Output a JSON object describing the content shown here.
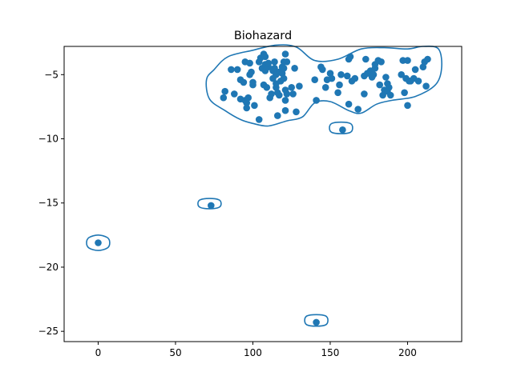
{
  "chart_data": {
    "type": "scatter",
    "title": "Biohazard",
    "xlabel": "",
    "ylabel": "",
    "xlim": [
      -22,
      235
    ],
    "ylim": [
      -25.8,
      -2.8
    ],
    "x_ticks": [
      0,
      50,
      100,
      150,
      200
    ],
    "y_ticks": [
      -25,
      -20,
      -15,
      -10,
      -5
    ],
    "grid": false,
    "legend": "none",
    "colors": {
      "series": "#1f77b4",
      "axes": "#000000",
      "background": "#ffffff"
    },
    "points": [
      [
        0,
        -18.1
      ],
      [
        73,
        -15.2
      ],
      [
        158,
        -9.3
      ],
      [
        141,
        -24.3
      ],
      [
        81,
        -6.8
      ],
      [
        82,
        -6.3
      ],
      [
        86,
        -4.6
      ],
      [
        88,
        -6.5
      ],
      [
        90,
        -4.6
      ],
      [
        92,
        -5.4
      ],
      [
        92,
        -6.9
      ],
      [
        94,
        -5.6
      ],
      [
        95,
        -4.0
      ],
      [
        95,
        -7.0
      ],
      [
        96,
        -7.2
      ],
      [
        96,
        -7.6
      ],
      [
        97,
        -6.8
      ],
      [
        98,
        -5.0
      ],
      [
        98,
        -4.1
      ],
      [
        99,
        -4.8
      ],
      [
        100,
        -5.8
      ],
      [
        100,
        -5.6
      ],
      [
        101,
        -7.4
      ],
      [
        104,
        -8.5
      ],
      [
        104,
        -4.0
      ],
      [
        105,
        -3.7
      ],
      [
        106,
        -4.5
      ],
      [
        107,
        -3.4
      ],
      [
        107,
        -5.8
      ],
      [
        108,
        -3.6
      ],
      [
        108,
        -4.2
      ],
      [
        108,
        -4.7
      ],
      [
        109,
        -6.0
      ],
      [
        110,
        -4.4
      ],
      [
        110,
        -4.1
      ],
      [
        111,
        -6.8
      ],
      [
        112,
        -6.5
      ],
      [
        113,
        -5.3
      ],
      [
        113,
        -4.7
      ],
      [
        114,
        -4.0
      ],
      [
        114,
        -4.5
      ],
      [
        115,
        -6.0
      ],
      [
        115,
        -5.0
      ],
      [
        115,
        -5.7
      ],
      [
        116,
        -6.4
      ],
      [
        116,
        -8.2
      ],
      [
        117,
        -4.8
      ],
      [
        117,
        -6.6
      ],
      [
        118,
        -5.5
      ],
      [
        119,
        -4.4
      ],
      [
        119,
        -4.9
      ],
      [
        120,
        -4.0
      ],
      [
        120,
        -4.5
      ],
      [
        120,
        -5.3
      ],
      [
        121,
        -6.2
      ],
      [
        121,
        -7.0
      ],
      [
        121,
        -7.8
      ],
      [
        121,
        -3.4
      ],
      [
        122,
        -4.0
      ],
      [
        122,
        -6.5
      ],
      [
        125,
        -6.0
      ],
      [
        126,
        -6.5
      ],
      [
        127,
        -4.5
      ],
      [
        128,
        -7.9
      ],
      [
        130,
        -5.9
      ],
      [
        140,
        -5.4
      ],
      [
        141,
        -7.0
      ],
      [
        144,
        -4.4
      ],
      [
        145,
        -4.6
      ],
      [
        147,
        -6.0
      ],
      [
        148,
        -5.4
      ],
      [
        150,
        -4.9
      ],
      [
        151,
        -5.3
      ],
      [
        155,
        -6.4
      ],
      [
        156,
        -5.8
      ],
      [
        157,
        -5.0
      ],
      [
        161,
        -5.1
      ],
      [
        162,
        -3.8
      ],
      [
        162,
        -7.3
      ],
      [
        163,
        -3.6
      ],
      [
        164,
        -5.5
      ],
      [
        166,
        -5.3
      ],
      [
        168,
        -7.7
      ],
      [
        172,
        -5.1
      ],
      [
        172,
        -6.5
      ],
      [
        173,
        -3.8
      ],
      [
        174,
        -4.9
      ],
      [
        176,
        -4.7
      ],
      [
        177,
        -5.2
      ],
      [
        178,
        -5.0
      ],
      [
        179,
        -4.5
      ],
      [
        179,
        -4.2
      ],
      [
        181,
        -3.9
      ],
      [
        182,
        -5.8
      ],
      [
        183,
        -4.0
      ],
      [
        184,
        -6.6
      ],
      [
        185,
        -6.2
      ],
      [
        186,
        -5.2
      ],
      [
        187,
        -5.7
      ],
      [
        187,
        -6.3
      ],
      [
        188,
        -6.0
      ],
      [
        189,
        -6.6
      ],
      [
        196,
        -5.0
      ],
      [
        197,
        -3.9
      ],
      [
        198,
        -6.4
      ],
      [
        199,
        -5.3
      ],
      [
        200,
        -3.9
      ],
      [
        200,
        -7.4
      ],
      [
        201,
        -5.5
      ],
      [
        202,
        -5.5
      ],
      [
        204,
        -5.3
      ],
      [
        205,
        -4.6
      ],
      [
        207,
        -5.5
      ],
      [
        210,
        -4.4
      ],
      [
        211,
        -4.0
      ],
      [
        212,
        -5.9
      ],
      [
        213,
        -3.8
      ]
    ],
    "contours": [
      [
        [
          84,
          -3.6
        ],
        [
          100,
          -3.1
        ],
        [
          115,
          -2.7
        ],
        [
          128,
          -2.85
        ],
        [
          140,
          -3.9
        ],
        [
          155,
          -3.8
        ],
        [
          170,
          -3.0
        ],
        [
          185,
          -2.9
        ],
        [
          200,
          -3.0
        ],
        [
          210,
          -2.8
        ],
        [
          220,
          -3.0
        ],
        [
          222,
          -4.5
        ],
        [
          218,
          -5.8
        ],
        [
          205,
          -6.7
        ],
        [
          190,
          -7.0
        ],
        [
          180,
          -7.3
        ],
        [
          170,
          -8.0
        ],
        [
          162,
          -7.8
        ],
        [
          150,
          -7.1
        ],
        [
          140,
          -7.2
        ],
        [
          132,
          -8.3
        ],
        [
          122,
          -8.6
        ],
        [
          110,
          -9.0
        ],
        [
          100,
          -8.8
        ],
        [
          92,
          -8.5
        ],
        [
          82,
          -7.8
        ],
        [
          72,
          -6.9
        ],
        [
          70,
          -5.4
        ],
        [
          75,
          -4.6
        ],
        [
          84,
          -3.6
        ]
      ],
      [
        [
          0,
          -17.5
        ],
        [
          6,
          -17.7
        ],
        [
          7.5,
          -18.1
        ],
        [
          6,
          -18.5
        ],
        [
          0,
          -18.7
        ],
        [
          -6,
          -18.5
        ],
        [
          -7.5,
          -18.1
        ],
        [
          -6,
          -17.7
        ],
        [
          0,
          -17.5
        ]
      ],
      [
        [
          72,
          -14.65
        ],
        [
          78,
          -14.75
        ],
        [
          79.5,
          -15.05
        ],
        [
          78,
          -15.35
        ],
        [
          72,
          -15.45
        ],
        [
          66,
          -15.35
        ],
        [
          64.5,
          -15.05
        ],
        [
          66,
          -14.75
        ],
        [
          72,
          -14.65
        ]
      ],
      [
        [
          157,
          -8.7
        ],
        [
          163,
          -8.8
        ],
        [
          164.5,
          -9.15
        ],
        [
          163,
          -9.5
        ],
        [
          157,
          -9.6
        ],
        [
          151,
          -9.5
        ],
        [
          149.5,
          -9.15
        ],
        [
          151,
          -8.8
        ],
        [
          157,
          -8.7
        ]
      ],
      [
        [
          141,
          -23.7
        ],
        [
          147,
          -23.8
        ],
        [
          148.5,
          -24.15
        ],
        [
          147,
          -24.5
        ],
        [
          141,
          -24.6
        ],
        [
          135,
          -24.5
        ],
        [
          133.5,
          -24.15
        ],
        [
          135,
          -23.8
        ],
        [
          141,
          -23.7
        ]
      ]
    ]
  }
}
